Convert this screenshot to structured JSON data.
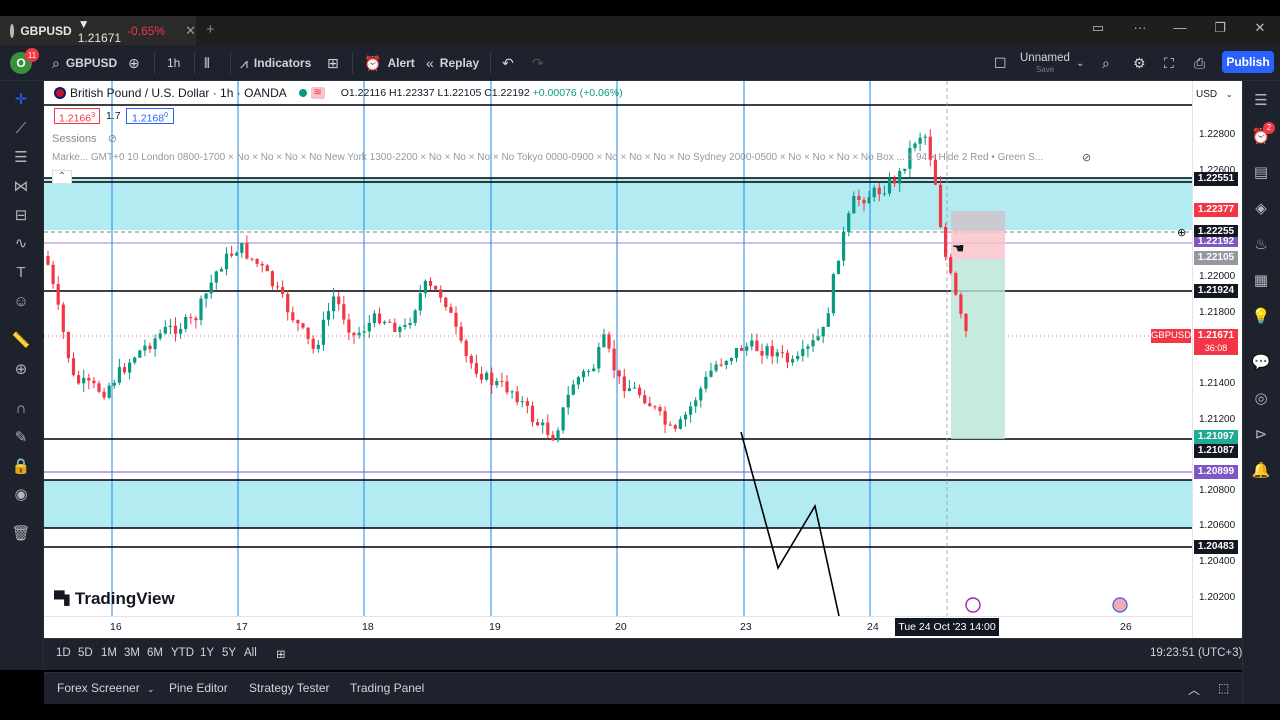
{
  "window": {
    "tab_symbol": "GBPUSD",
    "tab_price": "▼ 1.21671",
    "tab_change": "-0.65%",
    "tab_close": "✕",
    "new_tab": "+"
  },
  "toolbar": {
    "avatar_letter": "O",
    "avatar_badge": "11",
    "symbol": "GBPUSD",
    "interval": "1h",
    "indicators_label": "Indicators",
    "alert_label": "Alert",
    "replay_label": "Replay",
    "layout_name": "Unnamed",
    "layout_sub": "Save",
    "publish_label": "Publish"
  },
  "legend": {
    "title": "British Pound / U.S. Dollar · 1h · OANDA",
    "open": "O1.22116",
    "high": "H1.22337",
    "low": "L1.22105",
    "close": "C1.22192",
    "change": "+0.00076 (+0.06%)",
    "sell_price": "1.2166",
    "sell_sup": "3",
    "spread": "1.7",
    "buy_price": "1.2168",
    "buy_sup": "0",
    "sessions_label": "Sessions",
    "sessions_row": "Marke... GMT+0 10 London 0800-1700 × No × No × No × No New York 1300-2200 × No × No × No × No Tokyo 0000-0900 × No × No × No × No Sydney 2000-0500 × No × No × No × No Box ... 1 94 × Hide 2 Red • Green S..."
  },
  "price_scale": {
    "currency": "USD",
    "ticks": [
      "1.22800",
      "1.22600",
      "1.22000",
      "1.21800",
      "1.21400",
      "1.21200",
      "1.20800",
      "1.20600",
      "1.20400",
      "1.20200"
    ],
    "labels": [
      {
        "text": "1.22551",
        "color": "#131722"
      },
      {
        "text": "1.22377",
        "color": "#f23645"
      },
      {
        "text": "1.22255",
        "color": "#131722"
      },
      {
        "text": "1.22192",
        "color": "#7e57c2"
      },
      {
        "text": "1.22105",
        "color": "#9598a1"
      },
      {
        "text": "1.21924",
        "color": "#131722"
      },
      {
        "text": "1.21671",
        "color": "#f23645"
      },
      {
        "text": "36:08",
        "color": "#f23645"
      },
      {
        "text": "1.21097",
        "color": "#22ab94"
      },
      {
        "text": "1.21087",
        "color": "#131722"
      },
      {
        "text": "1.20899",
        "color": "#7e57c2"
      },
      {
        "text": "1.20483",
        "color": "#131722"
      }
    ],
    "symbol_tag": "GBPUSD"
  },
  "time_axis": {
    "ticks": [
      "16",
      "17",
      "18",
      "19",
      "20",
      "23",
      "24",
      "26"
    ],
    "crosshair": "Tue 24 Oct '23   14:00"
  },
  "branding": {
    "logo_text": "TradingView"
  },
  "range_bar": {
    "ranges": [
      "1D",
      "5D",
      "1M",
      "3M",
      "6M",
      "YTD",
      "1Y",
      "5Y",
      "All"
    ],
    "clock": "19:23:51 (UTC+3)"
  },
  "bottom_panel": {
    "tabs": [
      "Forex Screener",
      "Pine Editor",
      "Strategy Tester",
      "Trading Panel"
    ]
  },
  "right_widgets": {
    "alert_badge": "2"
  },
  "colors": {
    "up": "#089981",
    "down": "#f23645",
    "zone": "#b2ebf2",
    "accent": "#2962ff"
  }
}
